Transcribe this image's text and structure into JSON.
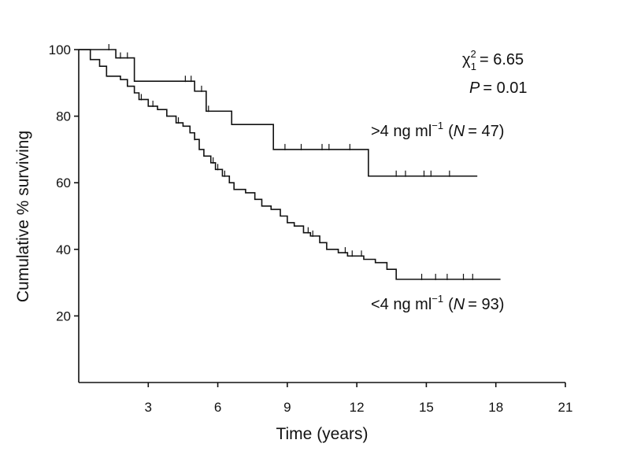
{
  "chart_data": {
    "type": "line",
    "title": "",
    "xlabel": "Time (years)",
    "ylabel": "Cumulative % surviving",
    "xlim": [
      0,
      21
    ],
    "ylim": [
      0,
      100
    ],
    "xticks": [
      3,
      6,
      9,
      12,
      15,
      18,
      21
    ],
    "yticks": [
      20,
      40,
      60,
      80,
      100
    ],
    "annotations": {
      "chi_label": "χ",
      "chi_sup": "2",
      "chi_sub": "1",
      "chi_value": "= 6.65",
      "p_label": "P",
      "p_value": "= 0.01"
    },
    "series": [
      {
        "name_prefix": ">4 ng ml",
        "name_sup": "−1",
        "name_n": "N",
        "name_count": "= 47)",
        "x": [
          0,
          1.6,
          2.4,
          5.0,
          5.5,
          6.6,
          8.4,
          12.5,
          17.2
        ],
        "y": [
          100,
          97.5,
          90.5,
          87.5,
          81.5,
          77.5,
          70,
          62,
          62
        ],
        "censored": [
          [
            1.3,
            100
          ],
          [
            1.8,
            97.5
          ],
          [
            2.1,
            97.5
          ],
          [
            4.6,
            90.5
          ],
          [
            4.85,
            90.5
          ],
          [
            5.3,
            87.5
          ],
          [
            5.6,
            81.5
          ],
          [
            8.9,
            70
          ],
          [
            9.6,
            70
          ],
          [
            10.5,
            70
          ],
          [
            10.8,
            70
          ],
          [
            11.7,
            70
          ],
          [
            13.7,
            62
          ],
          [
            14.1,
            62
          ],
          [
            14.9,
            62
          ],
          [
            15.2,
            62
          ],
          [
            16.0,
            62
          ]
        ]
      },
      {
        "name_prefix": "<4 ng ml",
        "name_sup": "−1",
        "name_n": "N",
        "name_count": "= 93)",
        "x": [
          0,
          0.5,
          0.9,
          1.2,
          1.8,
          2.1,
          2.4,
          2.6,
          3.0,
          3.4,
          3.8,
          4.2,
          4.5,
          4.8,
          5.0,
          5.2,
          5.4,
          5.7,
          5.9,
          6.2,
          6.5,
          6.7,
          7.2,
          7.6,
          7.9,
          8.3,
          8.7,
          9.0,
          9.3,
          9.7,
          10.0,
          10.4,
          10.7,
          11.2,
          11.6,
          12.3,
          12.8,
          13.3,
          13.7,
          18.2
        ],
        "y": [
          100,
          97,
          95,
          92,
          91,
          89,
          87,
          85,
          83,
          82,
          80,
          78,
          77,
          75,
          73,
          70,
          68,
          66,
          64,
          62,
          60,
          58,
          57,
          55,
          53,
          52,
          50,
          48,
          47,
          45,
          44,
          42,
          40,
          39,
          38,
          37,
          36,
          34,
          31,
          31
        ],
        "censored": [
          [
            2.7,
            85
          ],
          [
            3.2,
            83
          ],
          [
            4.3,
            78
          ],
          [
            5.0,
            73
          ],
          [
            5.8,
            66
          ],
          [
            6.0,
            64
          ],
          [
            6.3,
            62
          ],
          [
            9.9,
            45
          ],
          [
            10.1,
            44
          ],
          [
            11.5,
            39
          ],
          [
            11.8,
            38
          ],
          [
            12.2,
            38
          ],
          [
            14.8,
            31
          ],
          [
            15.4,
            31
          ],
          [
            15.9,
            31
          ],
          [
            16.6,
            31
          ],
          [
            17.0,
            31
          ]
        ]
      }
    ]
  }
}
